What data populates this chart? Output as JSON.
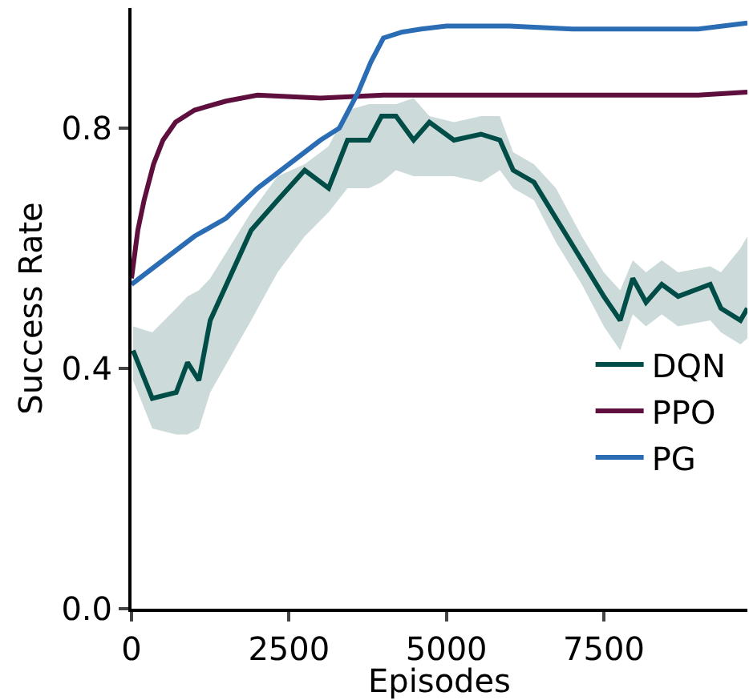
{
  "chart_data": {
    "type": "line",
    "xlabel": "Episodes",
    "ylabel": "Success Rate",
    "xlim": [
      0,
      9780
    ],
    "ylim": [
      0,
      1.0
    ],
    "xticks": [
      0,
      2500,
      5000,
      7500
    ],
    "yticks": [
      {
        "value": 0,
        "label": "0.0"
      },
      0.4,
      0.8
    ],
    "grid": false,
    "legend": "bottom right",
    "marker": "none",
    "line_style": "solid",
    "series": [
      {
        "name": "DQN",
        "color": "#004d47",
        "x": [
          25,
          330,
          710,
          890,
          1070,
          1250,
          1900,
          2320,
          2750,
          3130,
          3430,
          3770,
          3970,
          4200,
          4480,
          4730,
          5120,
          5550,
          5850,
          6060,
          6390,
          6740,
          7150,
          7500,
          7760,
          7960,
          8170,
          8420,
          8680,
          9190,
          9360,
          9670,
          9780
        ],
        "values": [
          0.43,
          0.35,
          0.36,
          0.41,
          0.38,
          0.48,
          0.63,
          0.68,
          0.73,
          0.7,
          0.78,
          0.78,
          0.82,
          0.82,
          0.78,
          0.81,
          0.78,
          0.79,
          0.78,
          0.73,
          0.71,
          0.65,
          0.58,
          0.52,
          0.48,
          0.55,
          0.51,
          0.54,
          0.52,
          0.54,
          0.5,
          0.48,
          0.5
        ],
        "lower": [
          0.38,
          0.3,
          0.29,
          0.29,
          0.3,
          0.36,
          0.48,
          0.56,
          0.62,
          0.66,
          0.7,
          0.7,
          0.71,
          0.73,
          0.72,
          0.72,
          0.72,
          0.71,
          0.73,
          0.7,
          0.68,
          0.61,
          0.54,
          0.47,
          0.43,
          0.49,
          0.47,
          0.49,
          0.47,
          0.48,
          0.46,
          0.44,
          0.45
        ],
        "upper": [
          0.47,
          0.46,
          0.5,
          0.52,
          0.53,
          0.55,
          0.66,
          0.72,
          0.74,
          0.77,
          0.83,
          0.84,
          0.84,
          0.84,
          0.85,
          0.82,
          0.81,
          0.82,
          0.82,
          0.76,
          0.74,
          0.7,
          0.62,
          0.56,
          0.53,
          0.58,
          0.56,
          0.58,
          0.56,
          0.57,
          0.56,
          0.6,
          0.62
        ]
      },
      {
        "name": "PPO",
        "color": "#5e0f3e",
        "x": [
          0,
          100,
          200,
          350,
          500,
          700,
          1000,
          1500,
          2000,
          3000,
          4000,
          5000,
          6000,
          7000,
          8000,
          9000,
          9780
        ],
        "values": [
          0.55,
          0.63,
          0.68,
          0.74,
          0.78,
          0.81,
          0.83,
          0.845,
          0.855,
          0.85,
          0.855,
          0.855,
          0.855,
          0.855,
          0.855,
          0.855,
          0.86
        ]
      },
      {
        "name": "PG",
        "color": "#2a6db5",
        "x": [
          0,
          500,
          1000,
          1500,
          2000,
          2500,
          3000,
          3300,
          3600,
          3800,
          4000,
          4300,
          4600,
          5000,
          6000,
          7000,
          8000,
          9000,
          9780
        ],
        "values": [
          0.54,
          0.58,
          0.62,
          0.65,
          0.7,
          0.74,
          0.78,
          0.8,
          0.86,
          0.91,
          0.95,
          0.96,
          0.965,
          0.97,
          0.97,
          0.965,
          0.965,
          0.965,
          0.975
        ]
      }
    ]
  }
}
